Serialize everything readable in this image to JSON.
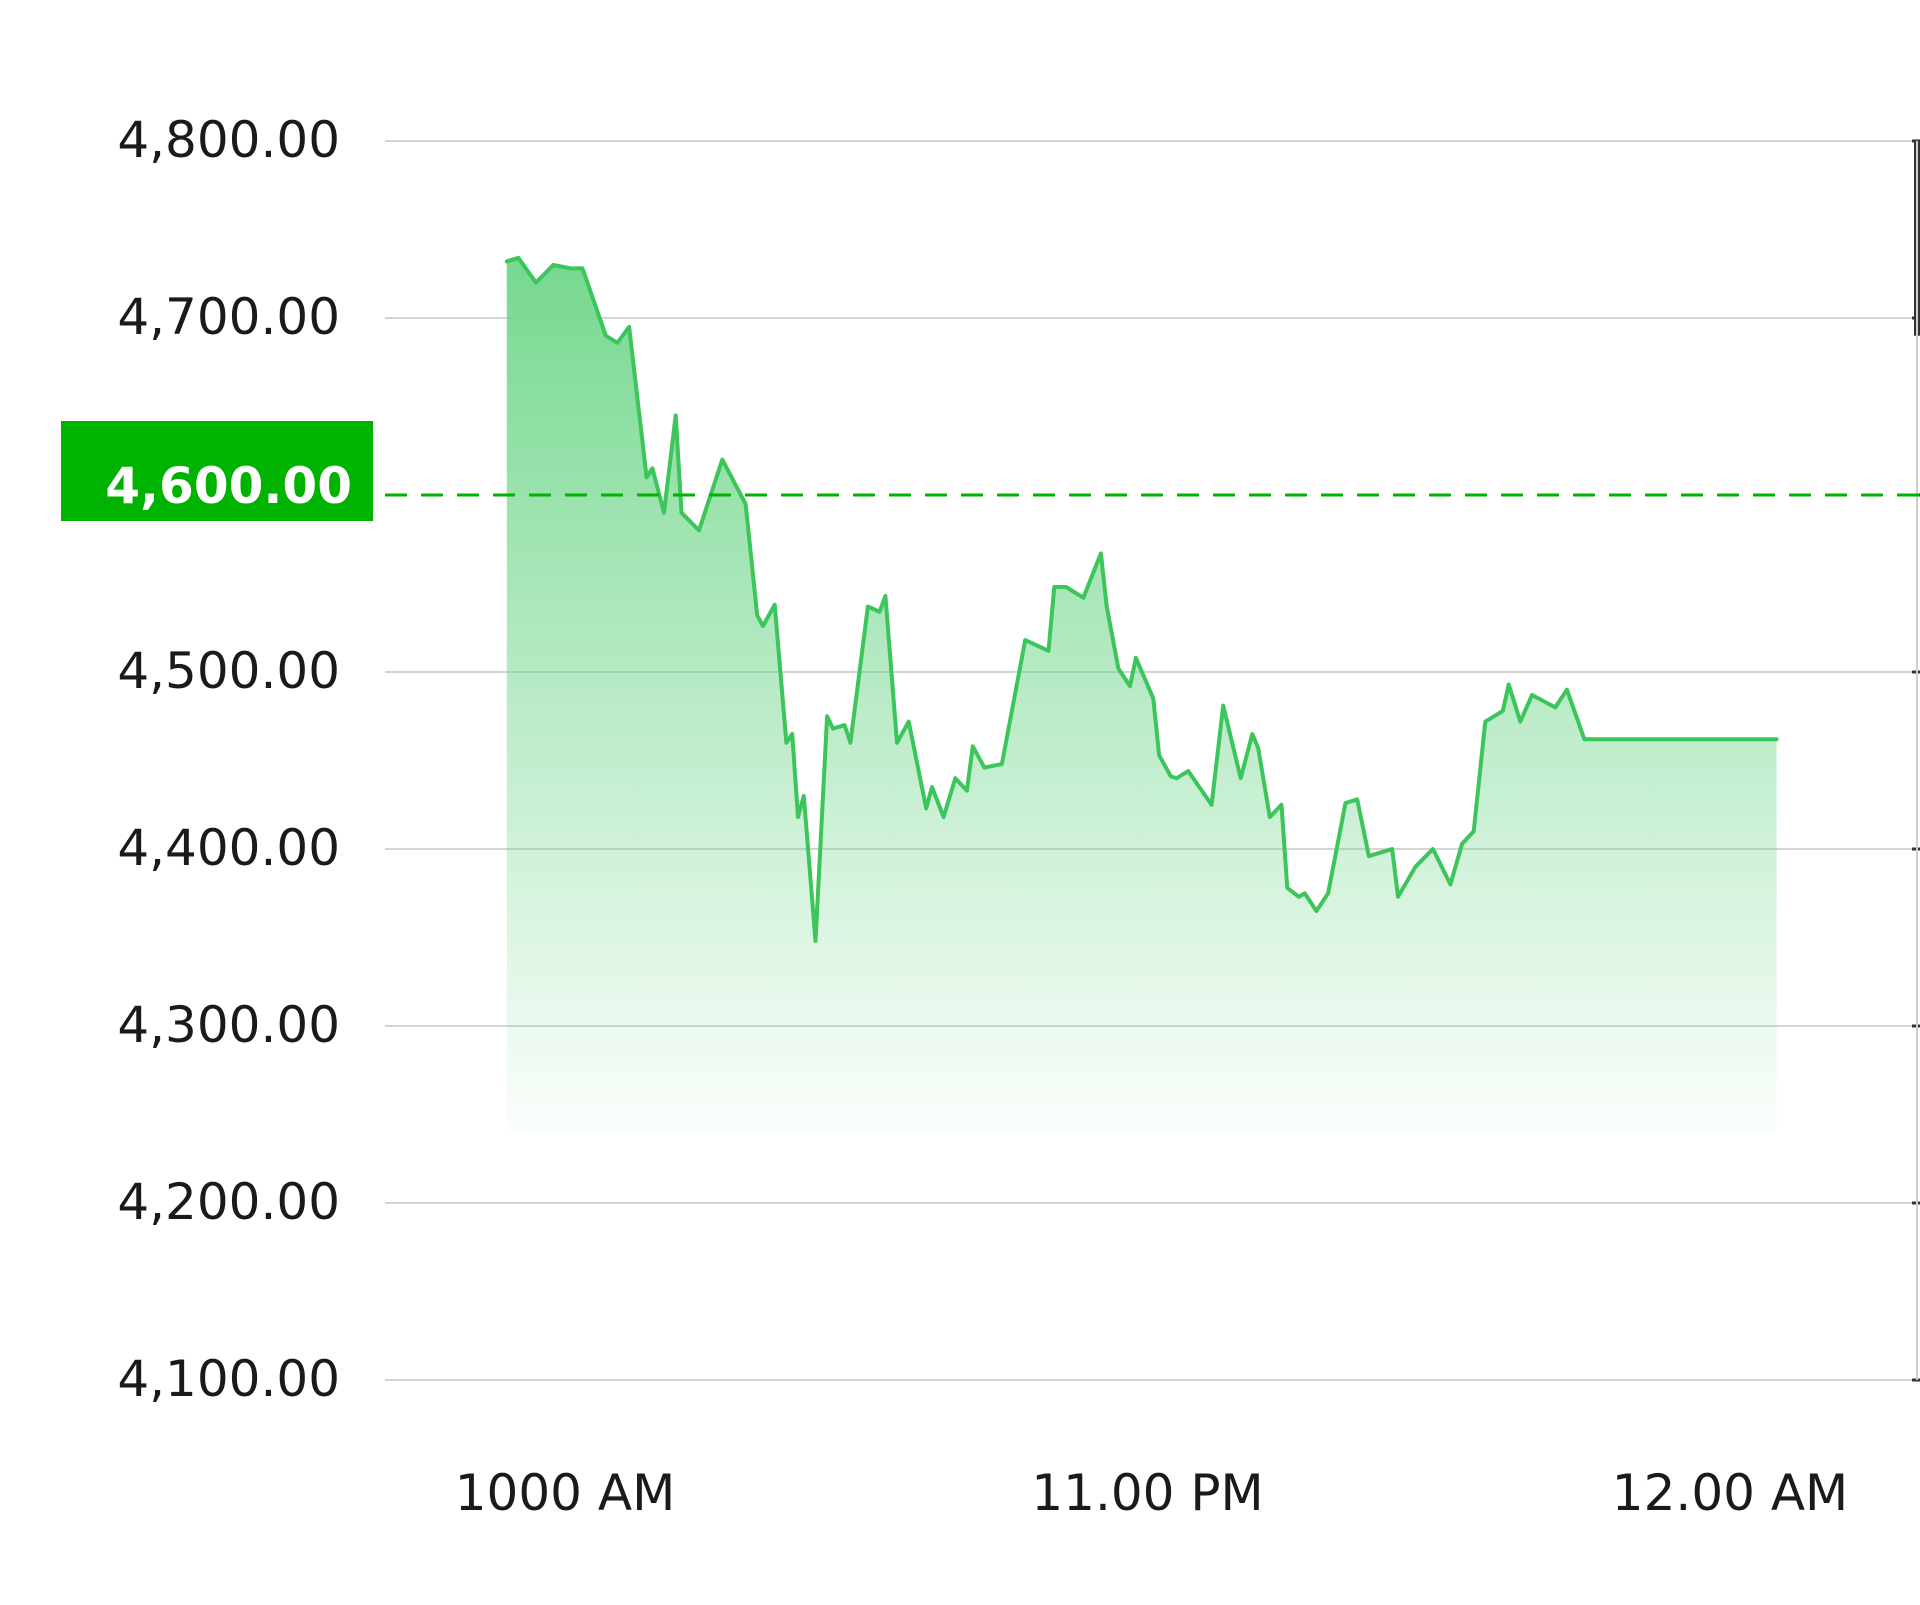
{
  "chart_data": {
    "type": "area",
    "title": "",
    "xlabel": "",
    "ylabel": "",
    "ylim": [
      4030,
      4870
    ],
    "y_ticks": [
      "4,800.00",
      "4,700.00",
      "4,600.00",
      "4,500.00",
      "4,400.00",
      "4,300.00",
      "4,200.00",
      "4,100.00"
    ],
    "y_tick_values": [
      4800,
      4700,
      4600,
      4500,
      4400,
      4300,
      4200,
      4100
    ],
    "x_ticks": [
      "1000 AM",
      "11.00 PM",
      "12.00 AM"
    ],
    "x_tick_values": [
      10.1,
      11.1,
      12.1
    ],
    "xlim": [
      9.88,
      12.4
    ],
    "reference_line": {
      "value": 4600,
      "label": "4,600.00",
      "style": "dashed"
    },
    "grid": true,
    "legend": "none",
    "colors": {
      "line": "#3cc55a",
      "fill_top": "#6fd68a",
      "reference": "#00b300",
      "grid": "#d4d4d4",
      "right_axis": "#333333"
    },
    "series": [
      {
        "x": [
          10.0,
          10.02,
          10.05,
          10.08,
          10.11,
          10.13,
          10.17,
          10.19,
          10.21,
          10.24,
          10.25,
          10.27,
          10.29,
          10.3,
          10.33,
          10.37,
          10.41,
          10.43,
          10.44,
          10.46,
          10.48,
          10.49,
          10.5,
          10.51,
          10.53,
          10.55,
          10.56,
          10.58,
          10.59,
          10.62,
          10.64,
          10.65,
          10.67,
          10.69,
          10.72,
          10.73,
          10.75,
          10.77,
          10.79,
          10.8,
          10.82,
          10.85,
          10.89,
          10.93,
          10.94,
          10.96,
          10.99,
          11.02,
          11.03,
          11.05,
          11.07,
          11.08,
          11.11,
          11.12,
          11.14,
          11.15,
          11.17,
          11.21,
          11.23,
          11.26,
          11.28,
          11.29,
          11.31,
          11.33,
          11.34,
          11.36,
          11.37,
          11.39,
          11.41,
          11.44,
          11.46,
          11.48,
          11.52,
          11.53,
          11.56,
          11.59,
          11.62,
          11.64,
          11.66,
          11.68,
          11.71,
          11.72,
          11.74,
          11.76,
          11.8,
          11.82,
          11.85,
          11.87,
          11.9,
          11.93,
          11.95,
          11.98,
          11.99,
          12.02,
          12.05,
          12.07,
          12.1,
          12.12,
          12.15,
          12.18
        ],
        "values": [
          4732,
          4734,
          4720,
          4730,
          4728,
          4728,
          4690,
          4686,
          4695,
          4610,
          4615,
          4590,
          4645,
          4590,
          4580,
          4620,
          4595,
          4532,
          4526,
          4538,
          4460,
          4465,
          4418,
          4430,
          4348,
          4475,
          4468,
          4470,
          4460,
          4537,
          4534,
          4543,
          4460,
          4472,
          4423,
          4435,
          4418,
          4440,
          4433,
          4458,
          4446,
          4448,
          4518,
          4512,
          4548,
          4548,
          4542,
          4567,
          4537,
          4502,
          4492,
          4508,
          4485,
          4453,
          4441,
          4440,
          4444,
          4425,
          4481,
          4440,
          4465,
          4457,
          4418,
          4425,
          4378,
          4373,
          4375,
          4365,
          4375,
          4426,
          4428,
          4396,
          4400,
          4373,
          4390,
          4400,
          4380,
          4403,
          4410,
          4472,
          4478,
          4493,
          4472,
          4487,
          4480,
          4490,
          4462,
          4462,
          4462,
          4462,
          4462,
          4462,
          4462,
          4462,
          4462,
          4462,
          4462,
          4462,
          4462,
          4462
        ]
      }
    ]
  }
}
